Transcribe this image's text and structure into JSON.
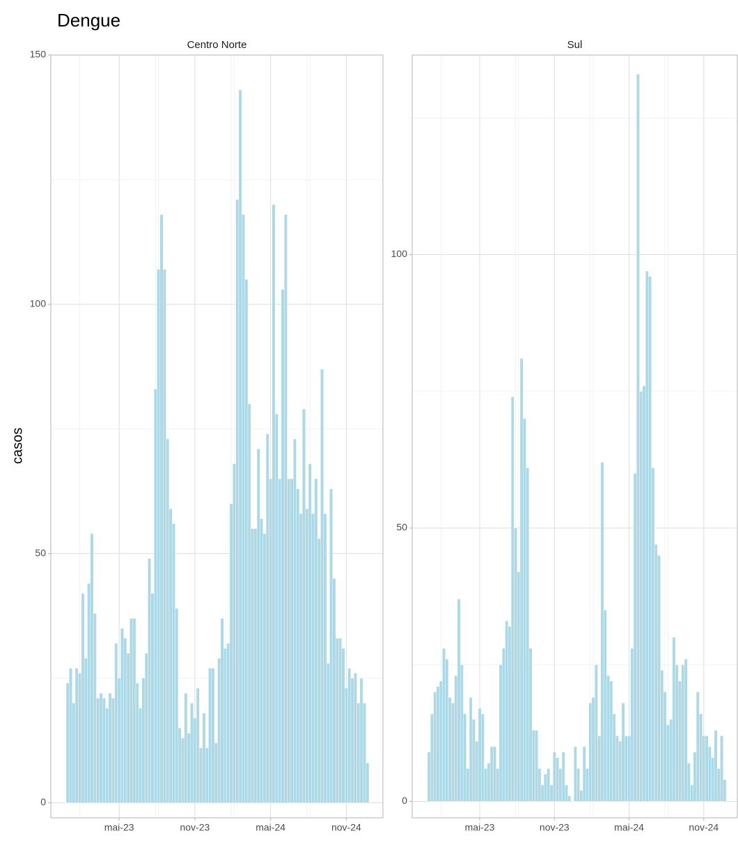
{
  "chart_data": {
    "type": "bar",
    "title": "Dengue",
    "ylabel": "casos",
    "color": "#add8e6",
    "grid": true,
    "facets": [
      {
        "title": "Centro Norte",
        "ylim": [
          -3,
          150
        ],
        "yticks": [
          0,
          50,
          100,
          150
        ],
        "categories": [
          null,
          null,
          null,
          null,
          null,
          null,
          null,
          null,
          null,
          null,
          null,
          null,
          null,
          null,
          null,
          null,
          null,
          "mai-23",
          null,
          null,
          null,
          null,
          null,
          null,
          null,
          null,
          null,
          null,
          null,
          null,
          null,
          null,
          null,
          null,
          null,
          null,
          null,
          null,
          null,
          null,
          null,
          null,
          "nov-23",
          null,
          null,
          null,
          null,
          null,
          null,
          null,
          null,
          null,
          null,
          null,
          null,
          null,
          null,
          null,
          null,
          null,
          null,
          null,
          null,
          null,
          null,
          null,
          null,
          "mai-24",
          null,
          null,
          null,
          null,
          null,
          null,
          null,
          null,
          null,
          null,
          null,
          null,
          null,
          null,
          null,
          null,
          null,
          null,
          null,
          null,
          null,
          null,
          null,
          null,
          "nov-24",
          null,
          null,
          null,
          null,
          null,
          null,
          null
        ],
        "values": [
          24,
          27,
          20,
          27,
          26,
          42,
          29,
          44,
          54,
          38,
          21,
          22,
          21,
          19,
          22,
          21,
          32,
          25,
          35,
          33,
          30,
          37,
          37,
          24,
          19,
          25,
          30,
          49,
          42,
          83,
          107,
          118,
          107,
          73,
          59,
          56,
          39,
          15,
          13,
          22,
          14,
          20,
          17,
          23,
          11,
          18,
          11,
          27,
          27,
          12,
          29,
          37,
          31,
          32,
          60,
          68,
          121,
          143,
          118,
          105,
          80,
          55,
          55,
          71,
          57,
          54,
          74,
          65,
          120,
          78,
          65,
          103,
          118,
          65,
          65,
          73,
          63,
          58,
          79,
          59,
          68,
          58,
          65,
          53,
          87,
          58,
          28,
          63,
          45,
          33,
          33,
          31,
          23,
          27,
          25,
          26,
          20,
          25,
          20,
          8
        ]
      },
      {
        "title": "Sul",
        "ylim": [
          -3,
          136.5
        ],
        "yticks": [
          0,
          50,
          100
        ],
        "categories": [
          null,
          null,
          null,
          null,
          null,
          null,
          null,
          null,
          null,
          null,
          null,
          null,
          null,
          null,
          null,
          null,
          null,
          "mai-23",
          null,
          null,
          null,
          null,
          null,
          null,
          null,
          null,
          null,
          null,
          null,
          null,
          null,
          null,
          null,
          null,
          null,
          null,
          null,
          null,
          null,
          null,
          null,
          null,
          "nov-23",
          null,
          null,
          null,
          null,
          null,
          null,
          null,
          null,
          null,
          null,
          null,
          null,
          null,
          null,
          null,
          null,
          null,
          null,
          null,
          null,
          null,
          null,
          null,
          null,
          "mai-24",
          null,
          null,
          null,
          null,
          null,
          null,
          null,
          null,
          null,
          null,
          null,
          null,
          null,
          null,
          null,
          null,
          null,
          null,
          null,
          null,
          null,
          null,
          null,
          null,
          "nov-24",
          null,
          null,
          null,
          null,
          null,
          null,
          null
        ],
        "values": [
          9,
          16,
          20,
          21,
          22,
          28,
          26,
          19,
          18,
          23,
          37,
          25,
          16,
          6,
          19,
          15,
          11,
          17,
          16,
          6,
          7,
          10,
          10,
          6,
          25,
          28,
          33,
          32,
          74,
          50,
          42,
          81,
          70,
          61,
          28,
          13,
          13,
          6,
          3,
          5,
          6,
          3,
          9,
          8,
          6,
          9,
          3,
          1,
          0,
          10,
          6,
          2,
          10,
          6,
          18,
          19,
          25,
          12,
          62,
          35,
          23,
          22,
          16,
          12,
          11,
          18,
          12,
          12,
          28,
          60,
          133,
          75,
          76,
          97,
          96,
          61,
          47,
          45,
          24,
          20,
          14,
          15,
          30,
          25,
          22,
          25,
          26,
          7,
          3,
          9,
          20,
          16,
          12,
          12,
          10,
          8,
          13,
          6,
          12,
          4
        ]
      }
    ]
  }
}
